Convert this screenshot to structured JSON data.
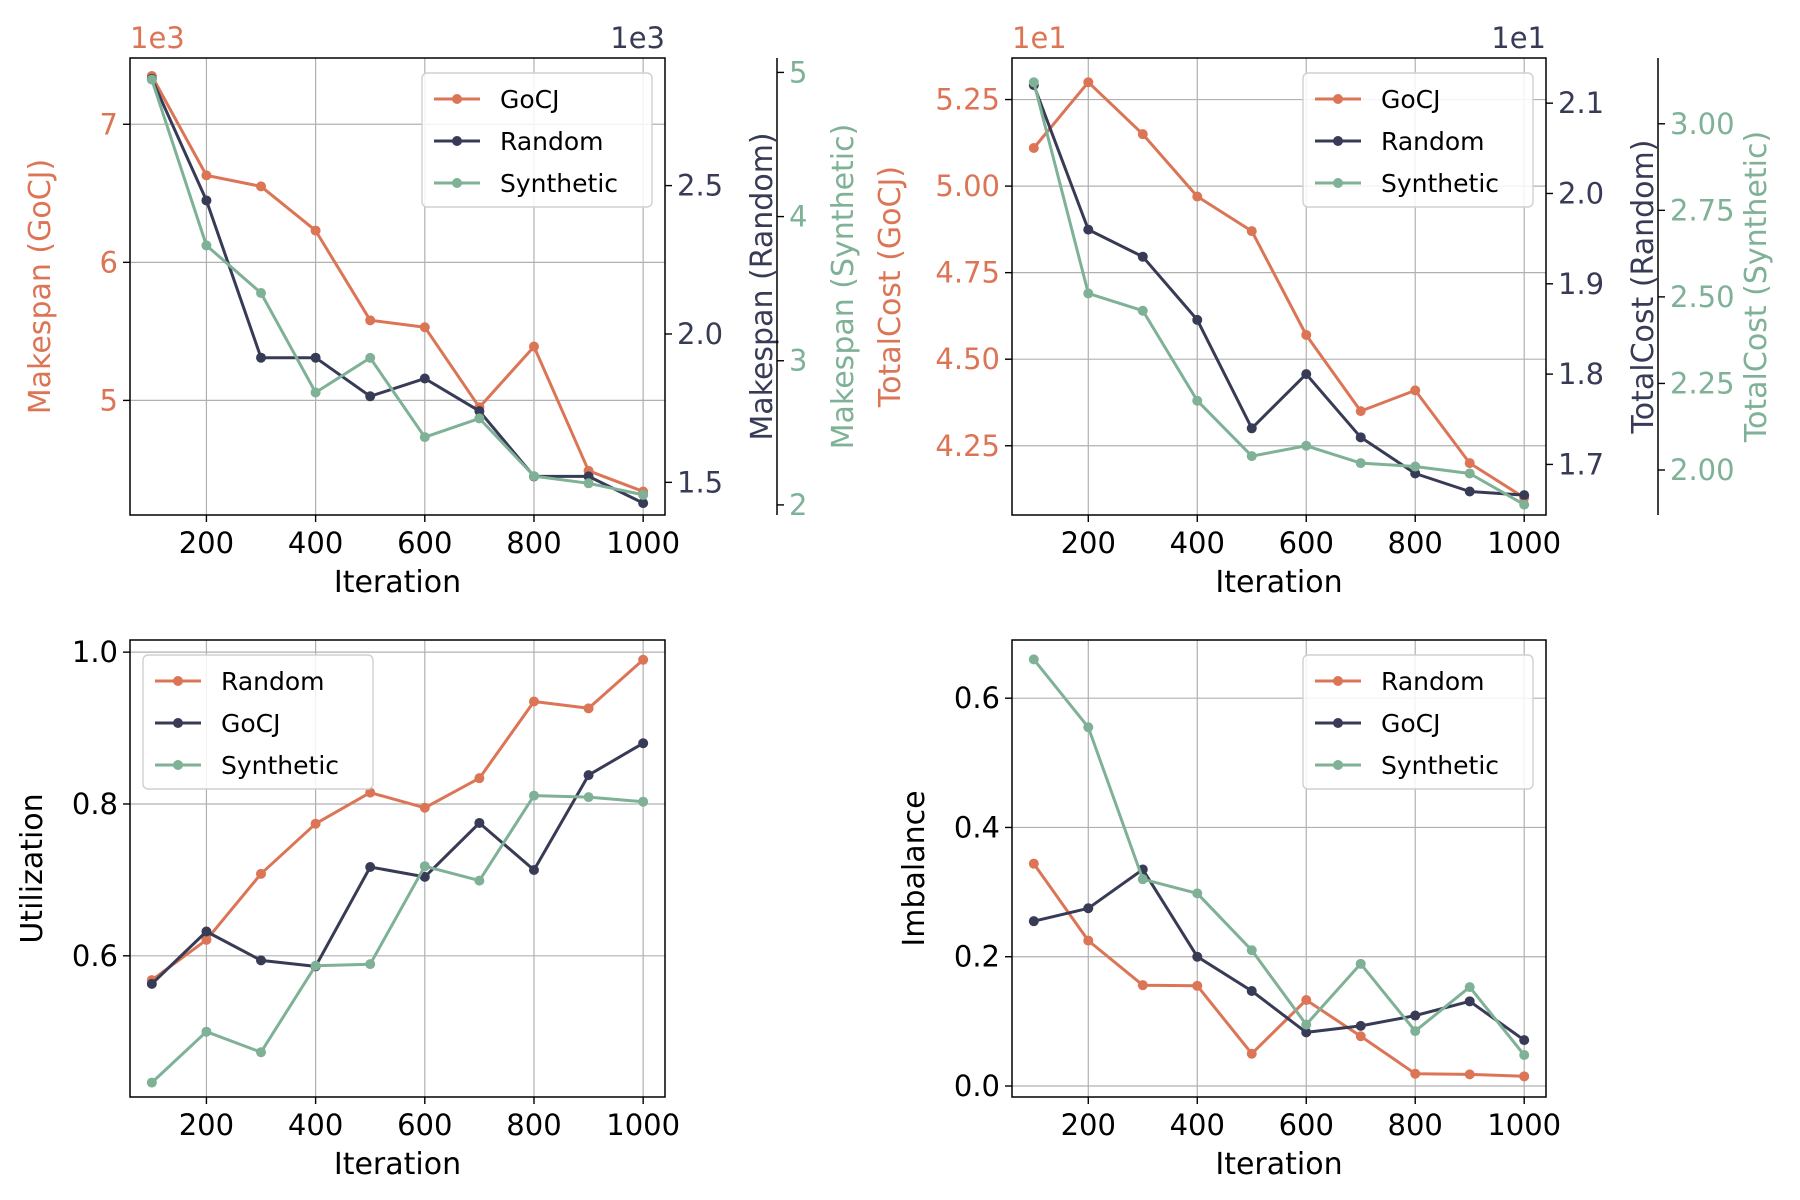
{
  "colors": {
    "orange": "#dc7556",
    "navy": "#383b56",
    "green": "#7fb196",
    "grid": "#b0b0b0",
    "axis": "#000000"
  },
  "chart_data": [
    {
      "id": "makespan",
      "type": "line",
      "xlabel": "Iteration",
      "x": [
        100,
        200,
        300,
        400,
        500,
        600,
        700,
        800,
        900,
        1000
      ],
      "xticks": [
        200,
        400,
        600,
        800,
        1000
      ],
      "xlim": [
        60,
        1040
      ],
      "legend": {
        "placement": "top-right",
        "entries": [
          "GoCJ",
          "Random",
          "Synthetic"
        ],
        "colors": [
          "orange",
          "navy",
          "green"
        ]
      },
      "grid": true,
      "axes": [
        {
          "side": "left",
          "label": "Makespan (GoCJ)",
          "exponent": "1e3",
          "color": "orange",
          "lim": [
            4.17,
            7.48
          ],
          "ticks": [
            5,
            6,
            7
          ],
          "tick_labels": [
            "5",
            "6",
            "7"
          ]
        },
        {
          "side": "right",
          "label": "Makespan (Random)",
          "exponent": "1e3",
          "color": "navy",
          "lim": [
            1.39,
            2.93
          ],
          "ticks": [
            1.5,
            2.0,
            2.5
          ],
          "tick_labels": [
            "1.5",
            "2.0",
            "2.5"
          ]
        },
        {
          "side": "right2",
          "label": "Makespan (Synthetic)",
          "exponent": "",
          "color": "green",
          "lim": [
            1.93,
            5.1
          ],
          "ticks": [
            2,
            3,
            4,
            5
          ],
          "tick_labels": [
            "2",
            "3",
            "4",
            "5"
          ]
        }
      ],
      "series": [
        {
          "name": "GoCJ",
          "color": "orange",
          "axis": 0,
          "values": [
            7.35,
            6.63,
            6.55,
            6.23,
            5.58,
            5.53,
            4.95,
            5.39,
            4.49,
            4.34
          ]
        },
        {
          "name": "Random",
          "color": "navy",
          "axis": 1,
          "values": [
            2.86,
            2.45,
            1.92,
            1.92,
            1.79,
            1.85,
            1.74,
            1.52,
            1.52,
            1.43
          ]
        },
        {
          "name": "Synthetic",
          "color": "green",
          "axis": 2,
          "values": [
            4.95,
            3.8,
            3.47,
            2.78,
            3.02,
            2.47,
            2.6,
            2.2,
            2.15,
            2.07
          ]
        }
      ]
    },
    {
      "id": "totalcost",
      "type": "line",
      "xlabel": "Iteration",
      "x": [
        100,
        200,
        300,
        400,
        500,
        600,
        700,
        800,
        900,
        1000
      ],
      "xticks": [
        200,
        400,
        600,
        800,
        1000
      ],
      "xlim": [
        60,
        1040
      ],
      "legend": {
        "placement": "top-right",
        "entries": [
          "GoCJ",
          "Random",
          "Synthetic"
        ],
        "colors": [
          "orange",
          "navy",
          "green"
        ]
      },
      "grid": true,
      "axes": [
        {
          "side": "left",
          "label": "TotalCost (GoCJ)",
          "exponent": "1e1",
          "color": "orange",
          "lim": [
            4.05,
            5.37
          ],
          "ticks": [
            4.25,
            4.5,
            4.75,
            5.0,
            5.25
          ],
          "tick_labels": [
            "4.25",
            "4.50",
            "4.75",
            "5.00",
            "5.25"
          ]
        },
        {
          "side": "right",
          "label": "TotalCost (Random)",
          "exponent": "1e1",
          "color": "navy",
          "lim": [
            1.644,
            2.15
          ],
          "ticks": [
            1.7,
            1.8,
            1.9,
            2.0,
            2.1
          ],
          "tick_labels": [
            "1.7",
            "1.8",
            "1.9",
            "2.0",
            "2.1"
          ]
        },
        {
          "side": "right2",
          "label": "TotalCost (Synthetic)",
          "exponent": "",
          "color": "green",
          "lim": [
            1.87,
            3.19
          ],
          "ticks": [
            2.0,
            2.25,
            2.5,
            2.75,
            3.0
          ],
          "tick_labels": [
            "2.00",
            "2.25",
            "2.50",
            "2.75",
            "3.00"
          ]
        }
      ],
      "series": [
        {
          "name": "GoCJ",
          "color": "orange",
          "axis": 0,
          "values": [
            5.11,
            5.3,
            5.15,
            4.97,
            4.87,
            4.57,
            4.35,
            4.41,
            4.2,
            4.1
          ]
        },
        {
          "name": "Random",
          "color": "navy",
          "axis": 1,
          "values": [
            2.12,
            1.96,
            1.93,
            1.86,
            1.74,
            1.8,
            1.73,
            1.69,
            1.67,
            1.666
          ]
        },
        {
          "name": "Synthetic",
          "color": "green",
          "axis": 2,
          "values": [
            3.12,
            2.51,
            2.46,
            2.2,
            2.04,
            2.07,
            2.02,
            2.01,
            1.99,
            1.9
          ]
        }
      ]
    },
    {
      "id": "utilization",
      "type": "line",
      "xlabel": "Iteration",
      "ylabel": "Utilization",
      "x": [
        100,
        200,
        300,
        400,
        500,
        600,
        700,
        800,
        900,
        1000
      ],
      "xticks": [
        200,
        400,
        600,
        800,
        1000
      ],
      "xlim": [
        60,
        1040
      ],
      "ylim": [
        0.414,
        1.016
      ],
      "yticks": [
        0.6,
        0.8,
        1.0
      ],
      "ytick_labels": [
        "0.6",
        "0.8",
        "1.0"
      ],
      "legend": {
        "placement": "top-left",
        "entries": [
          "Random",
          "GoCJ",
          "Synthetic"
        ],
        "colors": [
          "orange",
          "navy",
          "green"
        ]
      },
      "grid": true,
      "series": [
        {
          "name": "Random",
          "color": "orange",
          "values": [
            0.568,
            0.621,
            0.708,
            0.774,
            0.815,
            0.795,
            0.834,
            0.935,
            0.926,
            0.99
          ]
        },
        {
          "name": "GoCJ",
          "color": "navy",
          "values": [
            0.563,
            0.632,
            0.594,
            0.586,
            0.717,
            0.704,
            0.775,
            0.713,
            0.838,
            0.88
          ]
        },
        {
          "name": "Synthetic",
          "color": "green",
          "values": [
            0.433,
            0.5,
            0.473,
            0.587,
            0.589,
            0.718,
            0.699,
            0.811,
            0.809,
            0.803
          ]
        }
      ]
    },
    {
      "id": "imbalance",
      "type": "line",
      "xlabel": "Iteration",
      "ylabel": "Imbalance",
      "x": [
        100,
        200,
        300,
        400,
        500,
        600,
        700,
        800,
        900,
        1000
      ],
      "xticks": [
        200,
        400,
        600,
        800,
        1000
      ],
      "xlim": [
        60,
        1040
      ],
      "ylim": [
        -0.017,
        0.69
      ],
      "yticks": [
        0.0,
        0.2,
        0.4,
        0.6
      ],
      "ytick_labels": [
        "0.0",
        "0.2",
        "0.4",
        "0.6"
      ],
      "legend": {
        "placement": "top-right",
        "entries": [
          "Random",
          "GoCJ",
          "Synthetic"
        ],
        "colors": [
          "orange",
          "navy",
          "green"
        ]
      },
      "grid": true,
      "series": [
        {
          "name": "Random",
          "color": "orange",
          "values": [
            0.344,
            0.225,
            0.156,
            0.155,
            0.05,
            0.133,
            0.077,
            0.019,
            0.018,
            0.015
          ]
        },
        {
          "name": "GoCJ",
          "color": "navy",
          "values": [
            0.255,
            0.275,
            0.335,
            0.2,
            0.147,
            0.083,
            0.093,
            0.109,
            0.131,
            0.071
          ]
        },
        {
          "name": "Synthetic",
          "color": "green",
          "values": [
            0.66,
            0.555,
            0.32,
            0.298,
            0.21,
            0.095,
            0.189,
            0.085,
            0.153,
            0.048
          ]
        }
      ]
    }
  ]
}
